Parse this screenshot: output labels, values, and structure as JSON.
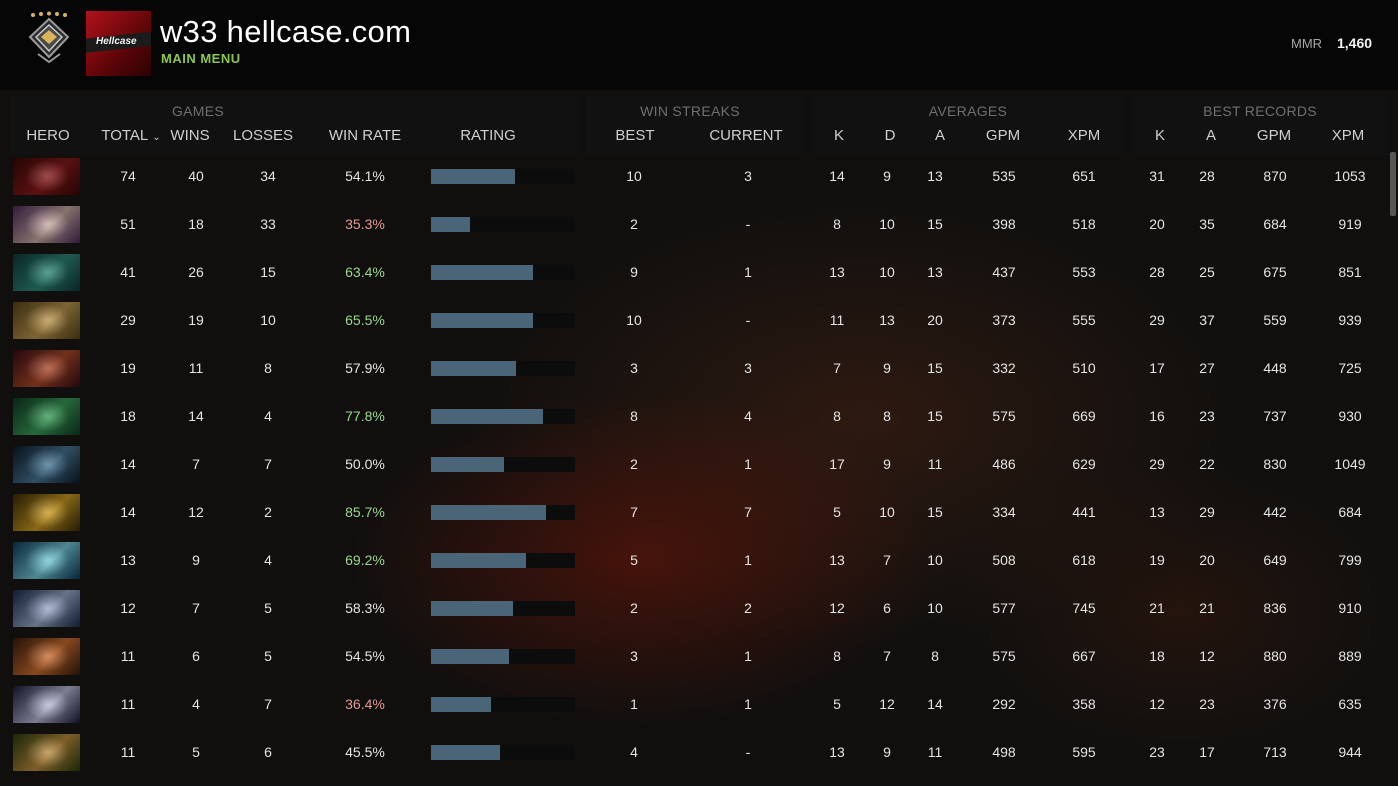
{
  "header": {
    "player_name": "w33 hellcase.com",
    "main_menu_label": "MAIN MENU",
    "mmr_label": "MMR",
    "mmr_value": "1,460",
    "avatar_text": "Hellcase",
    "rank_icon": "rank-medal-icon",
    "rank_stars": 5
  },
  "groups": {
    "games": "GAMES",
    "win_streaks": "WIN STREAKS",
    "averages": "AVERAGES",
    "best_records": "BEST RECORDS"
  },
  "columns": {
    "hero": "HERO",
    "total": "TOTAL",
    "wins": "WINS",
    "losses": "LOSSES",
    "win_rate": "WIN RATE",
    "rating": "RATING",
    "best": "BEST",
    "current": "CURRENT",
    "avg_k": "K",
    "avg_d": "D",
    "avg_a": "A",
    "avg_gpm": "GPM",
    "avg_xpm": "XPM",
    "rec_k": "K",
    "rec_a": "A",
    "rec_gpm": "GPM",
    "rec_xpm": "XPM"
  },
  "colors": {
    "win_rate_good": "#9ad78c",
    "win_rate_bad": "#e39a91",
    "rating_bar": "#4a6478",
    "main_menu": "#8bc64b"
  },
  "rows": [
    {
      "portrait_colors": [
        "#3a0608",
        "#8a1a1a"
      ],
      "total": "74",
      "wins": "40",
      "losses": "34",
      "win_rate": "54.1%",
      "rating": 0.58,
      "best": "10",
      "current": "3",
      "k": "14",
      "d": "9",
      "a": "13",
      "gpm": "535",
      "xpm": "651",
      "rk": "31",
      "ra": "28",
      "rgpm": "870",
      "rxpm": "1053"
    },
    {
      "portrait_colors": [
        "#4a2a5c",
        "#d0b0a8"
      ],
      "total": "51",
      "wins": "18",
      "losses": "33",
      "win_rate": "35.3%",
      "rating": 0.27,
      "best": "2",
      "current": "-",
      "k": "8",
      "d": "10",
      "a": "15",
      "gpm": "398",
      "xpm": "518",
      "rk": "20",
      "ra": "35",
      "rgpm": "684",
      "rxpm": "919"
    },
    {
      "portrait_colors": [
        "#0d3a3a",
        "#2f8a7a"
      ],
      "total": "41",
      "wins": "26",
      "losses": "15",
      "win_rate": "63.4%",
      "rating": 0.71,
      "best": "9",
      "current": "1",
      "k": "13",
      "d": "10",
      "a": "13",
      "gpm": "437",
      "xpm": "553",
      "rk": "28",
      "ra": "25",
      "rgpm": "675",
      "rxpm": "851"
    },
    {
      "portrait_colors": [
        "#5a4318",
        "#c09a50"
      ],
      "total": "29",
      "wins": "19",
      "losses": "10",
      "win_rate": "65.5%",
      "rating": 0.71,
      "best": "10",
      "current": "-",
      "k": "11",
      "d": "13",
      "a": "20",
      "gpm": "373",
      "xpm": "555",
      "rk": "29",
      "ra": "37",
      "rgpm": "559",
      "rxpm": "939"
    },
    {
      "portrait_colors": [
        "#3a0a14",
        "#b04a2a"
      ],
      "total": "19",
      "wins": "11",
      "losses": "8",
      "win_rate": "57.9%",
      "rating": 0.59,
      "best": "3",
      "current": "3",
      "k": "7",
      "d": "9",
      "a": "15",
      "gpm": "332",
      "xpm": "510",
      "rk": "17",
      "ra": "27",
      "rgpm": "448",
      "rxpm": "725"
    },
    {
      "portrait_colors": [
        "#0e3a24",
        "#3aa05a"
      ],
      "total": "18",
      "wins": "14",
      "losses": "4",
      "win_rate": "77.8%",
      "rating": 0.78,
      "best": "8",
      "current": "4",
      "k": "8",
      "d": "8",
      "a": "15",
      "gpm": "575",
      "xpm": "669",
      "rk": "16",
      "ra": "23",
      "rgpm": "737",
      "rxpm": "930"
    },
    {
      "portrait_colors": [
        "#0a1a2a",
        "#4a7a9a"
      ],
      "total": "14",
      "wins": "7",
      "losses": "7",
      "win_rate": "50.0%",
      "rating": 0.51,
      "best": "2",
      "current": "1",
      "k": "17",
      "d": "9",
      "a": "11",
      "gpm": "486",
      "xpm": "629",
      "rk": "29",
      "ra": "22",
      "rgpm": "830",
      "rxpm": "1049"
    },
    {
      "portrait_colors": [
        "#3a2a06",
        "#d0a020"
      ],
      "total": "14",
      "wins": "12",
      "losses": "2",
      "win_rate": "85.7%",
      "rating": 0.8,
      "best": "7",
      "current": "7",
      "k": "5",
      "d": "10",
      "a": "15",
      "gpm": "334",
      "xpm": "441",
      "rk": "13",
      "ra": "29",
      "rgpm": "442",
      "rxpm": "684"
    },
    {
      "portrait_colors": [
        "#0a3a5a",
        "#7ad0e0"
      ],
      "total": "13",
      "wins": "9",
      "losses": "4",
      "win_rate": "69.2%",
      "rating": 0.66,
      "best": "5",
      "current": "1",
      "k": "13",
      "d": "7",
      "a": "10",
      "gpm": "508",
      "xpm": "618",
      "rk": "19",
      "ra": "20",
      "rgpm": "649",
      "rxpm": "799"
    },
    {
      "portrait_colors": [
        "#1a2a4a",
        "#a0b0d0"
      ],
      "total": "12",
      "wins": "7",
      "losses": "5",
      "win_rate": "58.3%",
      "rating": 0.57,
      "best": "2",
      "current": "2",
      "k": "12",
      "d": "6",
      "a": "10",
      "gpm": "577",
      "xpm": "745",
      "rk": "21",
      "ra": "21",
      "rgpm": "836",
      "rxpm": "910"
    },
    {
      "portrait_colors": [
        "#3a1a0a",
        "#d07030"
      ],
      "total": "11",
      "wins": "6",
      "losses": "5",
      "win_rate": "54.5%",
      "rating": 0.54,
      "best": "3",
      "current": "1",
      "k": "8",
      "d": "7",
      "a": "8",
      "gpm": "575",
      "xpm": "667",
      "rk": "18",
      "ra": "12",
      "rgpm": "880",
      "rxpm": "889"
    },
    {
      "portrait_colors": [
        "#1a1a3a",
        "#c0c0e0"
      ],
      "total": "11",
      "wins": "4",
      "losses": "7",
      "win_rate": "36.4%",
      "rating": 0.42,
      "best": "1",
      "current": "1",
      "k": "5",
      "d": "12",
      "a": "14",
      "gpm": "292",
      "xpm": "358",
      "rk": "12",
      "ra": "23",
      "rgpm": "376",
      "rxpm": "635"
    },
    {
      "portrait_colors": [
        "#2a3a0a",
        "#c09040"
      ],
      "total": "11",
      "wins": "5",
      "losses": "6",
      "win_rate": "45.5%",
      "rating": 0.48,
      "best": "4",
      "current": "-",
      "k": "13",
      "d": "9",
      "a": "11",
      "gpm": "498",
      "xpm": "595",
      "rk": "23",
      "ra": "17",
      "rgpm": "713",
      "rxpm": "944"
    }
  ]
}
